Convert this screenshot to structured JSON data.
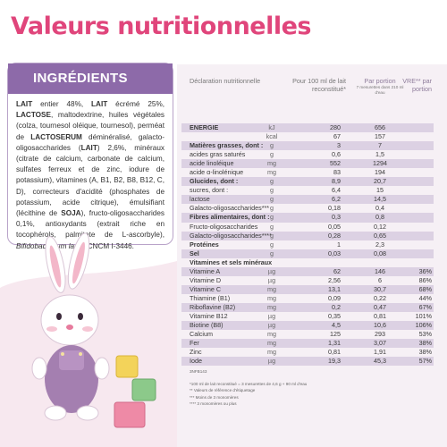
{
  "header": {
    "title": "Valeurs nutritionnelles"
  },
  "ingredients": {
    "title": "INGRÉDIENTS",
    "segments": [
      {
        "text": "LAIT",
        "style": "bold"
      },
      {
        "text": " entier 48%, ",
        "style": "normal"
      },
      {
        "text": "LAIT",
        "style": "bold"
      },
      {
        "text": " écrémé 25%, ",
        "style": "normal"
      },
      {
        "text": "LACTOSE",
        "style": "bold"
      },
      {
        "text": ", maltodextrine, huiles végétales (colza, tournesol oléique, tournesol), perméat de ",
        "style": "normal"
      },
      {
        "text": "LACTOSERUM",
        "style": "bold"
      },
      {
        "text": " déminéralisé, galacto-oligosaccharides (",
        "style": "normal"
      },
      {
        "text": "LAIT",
        "style": "bold"
      },
      {
        "text": ") 2,6%, minéraux (citrate de calcium, carbonate de calcium, sulfates ferreux et de zinc, iodure de potassium), vitamines (A, B1, B2, B8, B12, C, D), correcteurs d'acidité (phosphates de potassium, acide citrique), émulsifiant (lécithine de ",
        "style": "normal"
      },
      {
        "text": "SOJA",
        "style": "bold"
      },
      {
        "text": "), fructo-oligosaccharides 0,1%, antioxydants (extrait riche en tocophérols, palmitate de L-ascorbyle), ",
        "style": "normal"
      },
      {
        "text": "Bifidobacterium lactis",
        "style": "italic"
      },
      {
        "text": " CNCM I-3446.",
        "style": "normal"
      }
    ]
  },
  "table": {
    "headers": {
      "declaration": "Déclaration nutritionnelle",
      "per_100ml": "Pour 100 ml de lait reconstitué*",
      "per_portion": "Par portion",
      "per_portion_note": "7 mesurettes dans 210 ml d'eau",
      "vre": "VRE** par portion"
    },
    "rows": [
      {
        "name": "ENERGIE",
        "unit": "kJ",
        "per_100ml": "280",
        "per_portion": "656",
        "vre": null,
        "bold": true
      },
      {
        "name": null,
        "unit": "kcal",
        "per_100ml": "67",
        "per_portion": "157",
        "vre": null,
        "bold": false
      },
      {
        "name": "Matières grasses, dont :",
        "unit": "g",
        "per_100ml": "3",
        "per_portion": "7",
        "vre": null,
        "bold": true
      },
      {
        "name": "acides gras saturés",
        "unit": "g",
        "per_100ml": "0,6",
        "per_portion": "1,5",
        "vre": null,
        "bold": false
      },
      {
        "name": "acide linoléique",
        "unit": "mg",
        "per_100ml": "552",
        "per_portion": "1294",
        "vre": null,
        "bold": false
      },
      {
        "name": "acide α-linolénique",
        "unit": "mg",
        "per_100ml": "83",
        "per_portion": "194",
        "vre": null,
        "bold": false
      },
      {
        "name": "Glucides, dont :",
        "unit": "g",
        "per_100ml": "8,9",
        "per_portion": "20,7",
        "vre": null,
        "bold": true
      },
      {
        "name": "sucres, dont :",
        "unit": "g",
        "per_100ml": "6,4",
        "per_portion": "15",
        "vre": null,
        "bold": false
      },
      {
        "name": "lactose",
        "unit": "g",
        "per_100ml": "6,2",
        "per_portion": "14,5",
        "vre": null,
        "bold": false
      },
      {
        "name": "Galacto-oligosaccharides***",
        "unit": "g",
        "per_100ml": "0,18",
        "per_portion": "0,4",
        "vre": null,
        "bold": false
      },
      {
        "name": "Fibres alimentaires, dont :",
        "unit": "g",
        "per_100ml": "0,3",
        "per_portion": "0,8",
        "vre": null,
        "bold": true
      },
      {
        "name": "Fructo-oligosaccharides",
        "unit": "g",
        "per_100ml": "0,05",
        "per_portion": "0,12",
        "vre": null,
        "bold": false
      },
      {
        "name": "Galacto-oligosaccharides****",
        "unit": "g",
        "per_100ml": "0,28",
        "per_portion": "0,65",
        "vre": null,
        "bold": false
      },
      {
        "name": "Protéines",
        "unit": "g",
        "per_100ml": "1",
        "per_portion": "2,3",
        "vre": null,
        "bold": true
      },
      {
        "name": "Sel",
        "unit": "g",
        "per_100ml": "0,03",
        "per_portion": "0,08",
        "vre": null,
        "bold": true
      },
      {
        "name": "Vitamines et sels minéraux",
        "unit": null,
        "per_100ml": null,
        "per_portion": null,
        "vre": null,
        "bold": true
      },
      {
        "name": "Vitamine A",
        "unit": "µg",
        "per_100ml": "62",
        "per_portion": "146",
        "vre": "36%",
        "bold": false
      },
      {
        "name": "Vitamine D",
        "unit": "µg",
        "per_100ml": "2,56",
        "per_portion": "6",
        "vre": "86%",
        "bold": false
      },
      {
        "name": "Vitamine C",
        "unit": "mg",
        "per_100ml": "13,1",
        "per_portion": "30,7",
        "vre": "68%",
        "bold": false
      },
      {
        "name": "Thiamine (B1)",
        "unit": "mg",
        "per_100ml": "0,09",
        "per_portion": "0,22",
        "vre": "44%",
        "bold": false
      },
      {
        "name": "Riboflavine (B2)",
        "unit": "mg",
        "per_100ml": "0,2",
        "per_portion": "0,47",
        "vre": "67%",
        "bold": false
      },
      {
        "name": "Vitamine B12",
        "unit": "µg",
        "per_100ml": "0,35",
        "per_portion": "0,81",
        "vre": "101%",
        "bold": false
      },
      {
        "name": "Biotine (B8)",
        "unit": "µg",
        "per_100ml": "4,5",
        "per_portion": "10,6",
        "vre": "106%",
        "bold": false
      },
      {
        "name": "Calcium",
        "unit": "mg",
        "per_100ml": "125",
        "per_portion": "293",
        "vre": "53%",
        "bold": false
      },
      {
        "name": "Fer",
        "unit": "mg",
        "per_100ml": "1,31",
        "per_portion": "3,07",
        "vre": "38%",
        "bold": false
      },
      {
        "name": "Zinc",
        "unit": "mg",
        "per_100ml": "0,81",
        "per_portion": "1,91",
        "vre": "38%",
        "bold": false
      },
      {
        "name": "Iode",
        "unit": "µg",
        "per_100ml": "19,3",
        "per_portion": "45,3",
        "vre": "57%",
        "bold": false
      }
    ]
  },
  "footnotes": {
    "code": "3NFB143",
    "notes": [
      "*100 ml de lait reconstitué = 3 mesurettes de 4,6 g + 90 ml d'eau",
      "** Valeurs de référence d'étiquetage",
      "*** Moins de 3 monomères",
      "**** 3 monomères ou plus"
    ]
  }
}
